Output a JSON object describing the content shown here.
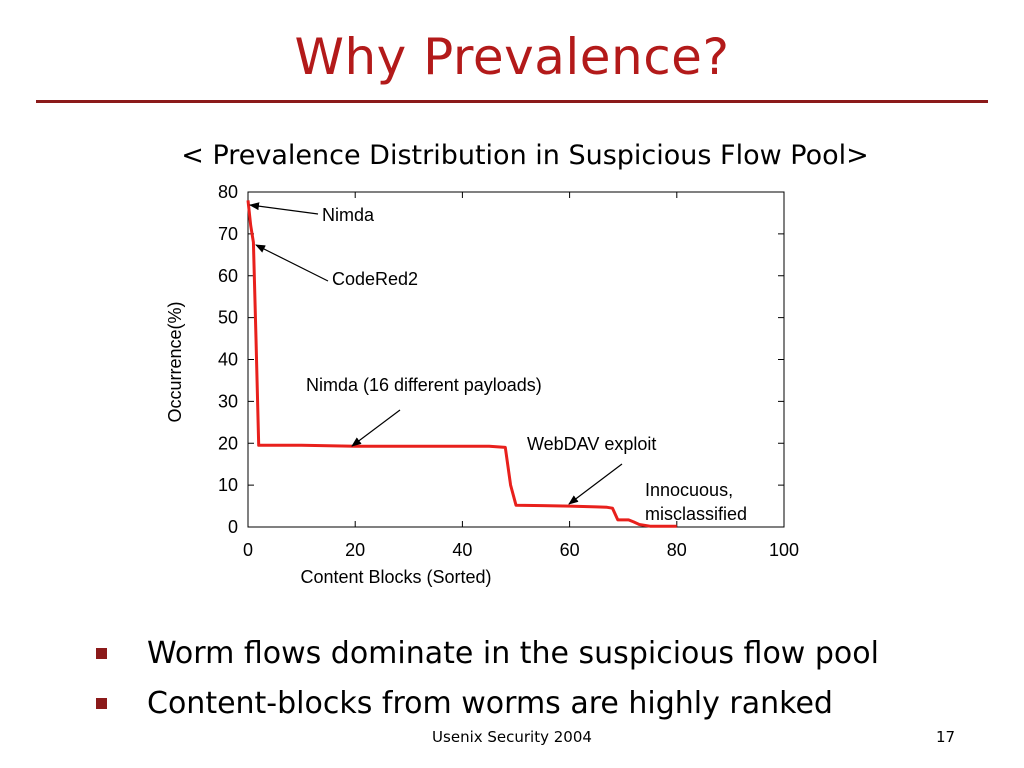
{
  "slide": {
    "title": "Why Prevalence?",
    "subtitle": "< Prevalence Distribution in Suspicious Flow Pool>",
    "bullets": [
      "Worm flows dominate in the suspicious flow pool",
      "Content-blocks from worms are highly ranked"
    ],
    "footer": "Usenix Security 2004",
    "page_number": "17"
  },
  "colors": {
    "title": "#b31a1a",
    "rule": "#8b1a1a",
    "bullet": "#8b1a1a",
    "series": "#e8201c"
  },
  "chart_data": {
    "type": "line",
    "title": "",
    "xlabel": "Content Blocks (Sorted)",
    "ylabel": "Occurrence(%)",
    "xlim": [
      0,
      100
    ],
    "ylim": [
      0,
      80
    ],
    "x_ticks": [
      "0",
      "20",
      "40",
      "60",
      "80",
      "100"
    ],
    "y_ticks": [
      "0",
      "10",
      "20",
      "30",
      "40",
      "50",
      "60",
      "70",
      "80"
    ],
    "grid": false,
    "series": [
      {
        "x": [
          0,
          0.5,
          1,
          1.5,
          2,
          5,
          10,
          15,
          20,
          25,
          30,
          35,
          40,
          45,
          48,
          49,
          50,
          55,
          60,
          65,
          67,
          68,
          69,
          70,
          71,
          72,
          73,
          74,
          75,
          78,
          80
        ],
        "y": [
          78,
          72,
          68,
          45,
          19.5,
          19.5,
          19.5,
          19.4,
          19.3,
          19.3,
          19.3,
          19.3,
          19.3,
          19.3,
          19.0,
          10,
          5.2,
          5.1,
          5.0,
          4.8,
          4.7,
          4.5,
          1.7,
          1.7,
          1.7,
          1.2,
          0.6,
          0.4,
          0.2,
          0.2,
          0.2
        ]
      }
    ],
    "annotations": [
      {
        "text": "Nimda",
        "x": 0,
        "y": 78
      },
      {
        "text": "CodeRed2",
        "x": 1,
        "y": 67
      },
      {
        "text": "Nimda (16 different payloads)",
        "x": 19,
        "y": 19.3
      },
      {
        "text": "WebDAV exploit",
        "x": 60,
        "y": 5
      },
      {
        "text": "Innocuous,",
        "x": 75,
        "y": 0.2
      },
      {
        "text": "misclassified",
        "x": 75,
        "y": 0.2
      }
    ]
  }
}
